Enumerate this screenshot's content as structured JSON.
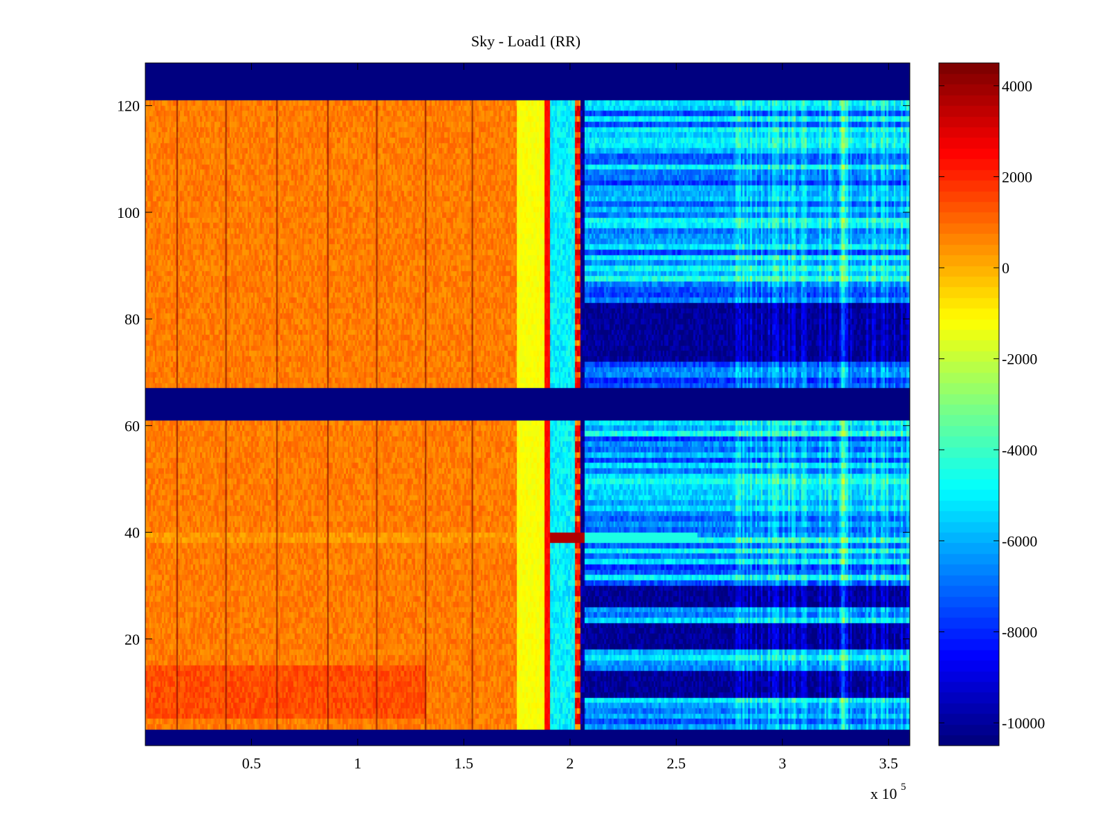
{
  "chart_data": {
    "type": "heatmap",
    "title": "Sky - Load1 (RR)",
    "xlabel": "",
    "ylabel": "",
    "x_multiplier_label": "x 10",
    "x_multiplier_exponent": "5",
    "xlim": [
      0,
      3.6
    ],
    "ylim": [
      0,
      128
    ],
    "x_ticks": [
      0.5,
      1,
      1.5,
      2,
      2.5,
      3,
      3.5
    ],
    "x_tick_labels": [
      "0.5",
      "1",
      "1.5",
      "2",
      "2.5",
      "3",
      "3.5"
    ],
    "y_ticks": [
      20,
      40,
      60,
      80,
      100,
      120
    ],
    "y_tick_labels": [
      "20",
      "40",
      "60",
      "80",
      "100",
      "120"
    ],
    "colorbar": {
      "colormap": "jet",
      "clim": [
        -10500,
        4500
      ],
      "ticks": [
        -10000,
        -8000,
        -6000,
        -4000,
        -2000,
        0,
        2000,
        4000
      ],
      "tick_labels": [
        "-10000",
        "-8000",
        "-6000",
        "-4000",
        "-2000",
        "0",
        "2000",
        "4000"
      ]
    },
    "masked_rows": [
      [
        0,
        3
      ],
      [
        61,
        67
      ],
      [
        121,
        128
      ]
    ],
    "regions": [
      {
        "name": "orange-block",
        "x_range": [
          0,
          1.75
        ],
        "value": 800
      },
      {
        "name": "yellow-band",
        "x_range": [
          1.75,
          1.88
        ],
        "value": -1200
      },
      {
        "name": "red-stripe",
        "x_range": [
          1.88,
          1.9
        ],
        "value": 2500
      },
      {
        "name": "cyan-band",
        "x_range": [
          1.9,
          2.02
        ],
        "value": -5000
      },
      {
        "name": "red-stripe-2",
        "x_range": [
          2.02,
          2.05
        ],
        "value": 2800
      },
      {
        "name": "blue-region",
        "x_range": [
          2.07,
          3.6
        ],
        "value": -7500
      }
    ],
    "vertical_dark_lines_x": [
      0.15,
      0.38,
      0.62,
      0.86,
      1.09,
      1.32,
      1.54
    ],
    "hot_row_y": 39
  }
}
